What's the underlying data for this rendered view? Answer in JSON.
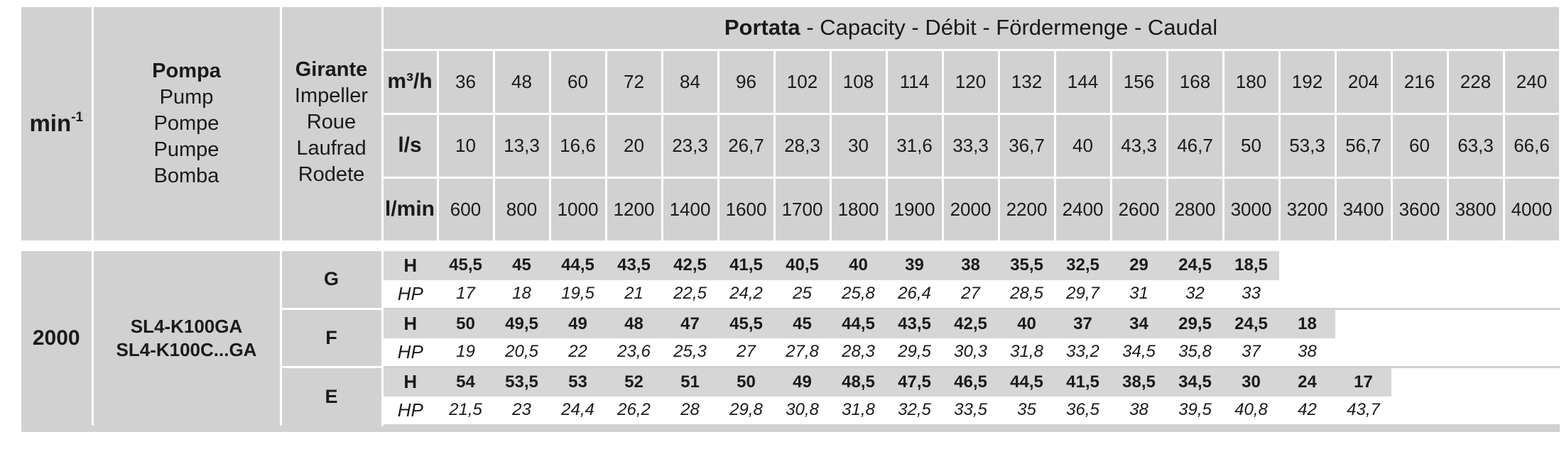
{
  "header": {
    "rpm_label": "min",
    "rpm_sup": "-1",
    "pump_labels": [
      "Pompa",
      "Pump",
      "Pompe",
      "Pumpe",
      "Bomba"
    ],
    "impeller_labels": [
      "Girante",
      "Impeller",
      "Roue",
      "Laufrad",
      "Rodete"
    ],
    "capacity_title_bold": "Portata",
    "capacity_title_rest": " - Capacity - Débit - Fördermenge - Caudal",
    "units": [
      "m³/h",
      "l/s",
      "l/min"
    ],
    "m3h": [
      "36",
      "48",
      "60",
      "72",
      "84",
      "96",
      "102",
      "108",
      "114",
      "120",
      "132",
      "144",
      "156",
      "168",
      "180",
      "192",
      "204",
      "216",
      "228",
      "240"
    ],
    "ls": [
      "10",
      "13,3",
      "16,6",
      "20",
      "23,3",
      "26,7",
      "28,3",
      "30",
      "31,6",
      "33,3",
      "36,7",
      "40",
      "43,3",
      "46,7",
      "50",
      "53,3",
      "56,7",
      "60",
      "63,3",
      "66,6"
    ],
    "lmin": [
      "600",
      "800",
      "1000",
      "1200",
      "1400",
      "1600",
      "1700",
      "1800",
      "1900",
      "2000",
      "2200",
      "2400",
      "2600",
      "2800",
      "3000",
      "3200",
      "3400",
      "3600",
      "3800",
      "4000"
    ]
  },
  "body": {
    "rpm": "2000",
    "models": [
      "SL4-K100GA",
      "SL4-K100C...GA"
    ],
    "row_labels": {
      "h": "H",
      "hp": "HP"
    },
    "impellers": [
      {
        "name": "G",
        "H": [
          "45,5",
          "45",
          "44,5",
          "43,5",
          "42,5",
          "41,5",
          "40,5",
          "40",
          "39",
          "38",
          "35,5",
          "32,5",
          "29",
          "24,5",
          "18,5",
          "",
          "",
          "",
          "",
          ""
        ],
        "HP": [
          "17",
          "18",
          "19,5",
          "21",
          "22,5",
          "24,2",
          "25",
          "25,8",
          "26,4",
          "27",
          "28,5",
          "29,7",
          "31",
          "32",
          "33",
          "",
          "",
          "",
          "",
          ""
        ]
      },
      {
        "name": "F",
        "H": [
          "50",
          "49,5",
          "49",
          "48",
          "47",
          "45,5",
          "45",
          "44,5",
          "43,5",
          "42,5",
          "40",
          "37",
          "34",
          "29,5",
          "24,5",
          "18",
          "",
          "",
          "",
          ""
        ],
        "HP": [
          "19",
          "20,5",
          "22",
          "23,6",
          "25,3",
          "27",
          "27,8",
          "28,3",
          "29,5",
          "30,3",
          "31,8",
          "33,2",
          "34,5",
          "35,8",
          "37",
          "38",
          "",
          "",
          "",
          ""
        ]
      },
      {
        "name": "E",
        "H": [
          "54",
          "53,5",
          "53",
          "52",
          "51",
          "50",
          "49",
          "48,5",
          "47,5",
          "46,5",
          "44,5",
          "41,5",
          "38,5",
          "34,5",
          "30",
          "24",
          "17",
          "",
          "",
          ""
        ],
        "HP": [
          "21,5",
          "23",
          "24,4",
          "26,2",
          "28",
          "29,8",
          "30,8",
          "31,8",
          "32,5",
          "33,5",
          "35",
          "36,5",
          "38",
          "39,5",
          "40,8",
          "42",
          "43,7",
          "",
          "",
          ""
        ]
      }
    ]
  }
}
